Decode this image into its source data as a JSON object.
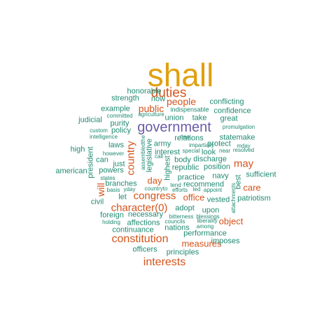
{
  "colors": {
    "orange": "#e0a010",
    "rust": "#d4541c",
    "purple": "#6a5ca8",
    "teal": "#1f8a72"
  },
  "words": [
    {
      "text": "shall",
      "color": "orange"
    },
    {
      "text": "duties",
      "color": "rust"
    },
    {
      "text": "people",
      "color": "rust"
    },
    {
      "text": "public",
      "color": "rust"
    },
    {
      "text": "government",
      "color": "purple"
    },
    {
      "text": "country",
      "color": "rust"
    },
    {
      "text": "may",
      "color": "rust"
    },
    {
      "text": "day",
      "color": "rust"
    },
    {
      "text": "will",
      "color": "rust"
    },
    {
      "text": "congress",
      "color": "rust"
    },
    {
      "text": "office",
      "color": "rust"
    },
    {
      "text": "care",
      "color": "rust"
    },
    {
      "text": "character(0)",
      "color": "rust"
    },
    {
      "text": "object",
      "color": "rust"
    },
    {
      "text": "constitution",
      "color": "rust"
    },
    {
      "text": "measures",
      "color": "rust"
    },
    {
      "text": "interests",
      "color": "rust"
    },
    {
      "text": "honorable",
      "color": "teal"
    },
    {
      "text": "strength",
      "color": "teal"
    },
    {
      "text": "now",
      "color": "teal"
    },
    {
      "text": "conflicting",
      "color": "teal"
    },
    {
      "text": "example",
      "color": "teal"
    },
    {
      "text": "indispensable",
      "color": "teal"
    },
    {
      "text": "confidence",
      "color": "teal"
    },
    {
      "text": "judicial",
      "color": "teal"
    },
    {
      "text": "committed",
      "color": "teal"
    },
    {
      "text": "agriculture",
      "color": "teal"
    },
    {
      "text": "union",
      "color": "teal"
    },
    {
      "text": "take",
      "color": "teal"
    },
    {
      "text": "great",
      "color": "teal"
    },
    {
      "text": "purity",
      "color": "teal"
    },
    {
      "text": "custom",
      "color": "teal"
    },
    {
      "text": "policy",
      "color": "teal"
    },
    {
      "text": "promulgation",
      "color": "teal"
    },
    {
      "text": "intelligence",
      "color": "teal"
    },
    {
      "text": "new",
      "color": "teal"
    },
    {
      "text": "statemake",
      "color": "teal"
    },
    {
      "text": "laws",
      "color": "teal"
    },
    {
      "text": "army",
      "color": "teal"
    },
    {
      "text": "relations",
      "color": "teal"
    },
    {
      "text": "impartially",
      "color": "teal"
    },
    {
      "text": "mday",
      "color": "teal"
    },
    {
      "text": "high",
      "color": "teal"
    },
    {
      "text": "however",
      "color": "teal"
    },
    {
      "text": "assembledthe",
      "color": "teal"
    },
    {
      "text": "legislative",
      "color": "teal"
    },
    {
      "text": "call",
      "color": "teal"
    },
    {
      "text": "protect",
      "color": "teal"
    },
    {
      "text": "resolved",
      "color": "teal"
    },
    {
      "text": "special",
      "color": "teal"
    },
    {
      "text": "interest",
      "color": "teal"
    },
    {
      "text": "look",
      "color": "teal"
    },
    {
      "text": "near",
      "color": "teal"
    },
    {
      "text": "president",
      "color": "teal"
    },
    {
      "text": "can",
      "color": "teal"
    },
    {
      "text": "body",
      "color": "teal"
    },
    {
      "text": "discharge",
      "color": "teal"
    },
    {
      "text": "just",
      "color": "teal"
    },
    {
      "text": "highest",
      "color": "teal"
    },
    {
      "text": "republic",
      "color": "teal"
    },
    {
      "text": "position",
      "color": "teal"
    },
    {
      "text": "sufficient",
      "color": "teal"
    },
    {
      "text": "american",
      "color": "teal"
    },
    {
      "text": "powers",
      "color": "teal"
    },
    {
      "text": "states",
      "color": "teal"
    },
    {
      "text": "practice",
      "color": "teal"
    },
    {
      "text": "navy",
      "color": "teal"
    },
    {
      "text": "best",
      "color": "teal"
    },
    {
      "text": "branches",
      "color": "teal"
    },
    {
      "text": "basis",
      "color": "teal"
    },
    {
      "text": "yday",
      "color": "teal"
    },
    {
      "text": "countryto",
      "color": "teal"
    },
    {
      "text": "tend",
      "color": "teal"
    },
    {
      "text": "efforts",
      "color": "teal"
    },
    {
      "text": "led",
      "color": "teal"
    },
    {
      "text": "appoint",
      "color": "teal"
    },
    {
      "text": "recommend",
      "color": "teal"
    },
    {
      "text": "let",
      "color": "teal"
    },
    {
      "text": "civil",
      "color": "teal"
    },
    {
      "text": "vested",
      "color": "teal"
    },
    {
      "text": "attachments",
      "color": "teal"
    },
    {
      "text": "patriotism",
      "color": "teal"
    },
    {
      "text": "foreign",
      "color": "teal"
    },
    {
      "text": "necessary",
      "color": "teal"
    },
    {
      "text": "adopt",
      "color": "teal"
    },
    {
      "text": "upon",
      "color": "teal"
    },
    {
      "text": "holding",
      "color": "teal"
    },
    {
      "text": "affections",
      "color": "teal"
    },
    {
      "text": "bitterness",
      "color": "teal"
    },
    {
      "text": "councils",
      "color": "teal"
    },
    {
      "text": "liberality",
      "color": "teal"
    },
    {
      "text": "blessings",
      "color": "teal"
    },
    {
      "text": "continuance",
      "color": "teal"
    },
    {
      "text": "nations",
      "color": "teal"
    },
    {
      "text": "among",
      "color": "teal"
    },
    {
      "text": "performance",
      "color": "teal"
    },
    {
      "text": "imposes",
      "color": "teal"
    },
    {
      "text": "officers",
      "color": "teal"
    },
    {
      "text": "principles",
      "color": "teal"
    }
  ]
}
